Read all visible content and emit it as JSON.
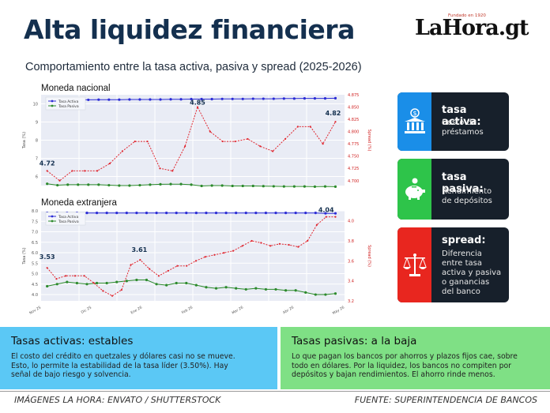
{
  "header": {
    "title": "Alta liquidez financiera",
    "subtitle": "Comportamiento entre la tasa activa, pasiva y spread (2025-2026)",
    "logo_text": "LaHora.gt",
    "logo_since": "Fundado en 1920"
  },
  "cards": [
    {
      "title": "tasa activa:",
      "desc": [
        "Costo de",
        "préstamos"
      ],
      "icon": "bank-dollar-icon",
      "color": "#1a8ee8"
    },
    {
      "title": "tasa pasiva:",
      "desc": [
        "Rendimiento",
        "de depósitos"
      ],
      "icon": "piggy-bank-icon",
      "color": "#2ec44a"
    },
    {
      "title": "spread:",
      "desc": [
        "Diferencia",
        "entre tasa",
        "activa y pasiva",
        "o ganancias",
        "del banco"
      ],
      "icon": "scale-icon",
      "color": "#e8261f"
    }
  ],
  "boxes": {
    "left": {
      "title": "Tasas activas: estables",
      "lines": [
        "El costo del crédito en quetzales y dólares casi no se mueve.",
        "Esto, lo permite la estabilidad de la tasa líder (3.50%). Hay",
        "señal de bajo riesgo y solvencia."
      ],
      "color": "#5bc8f5"
    },
    "right": {
      "title": "Tasas pasivas: a la baja",
      "lines": [
        "Lo que pagan los bancos por ahorros y plazos fijos cae, sobre",
        "todo en dólares. Por la liquidez, los bancos no compiten por",
        "depósitos y bajan rendimientos. El ahorro rinde menos."
      ],
      "color": "#7fe085"
    }
  },
  "footer": {
    "left": "IMÁGENES LA HORA: ENVATO / SHUTTERSTOCK",
    "right": "FUENTE: SUPERINTENDENCIA DE BANCOS"
  },
  "chart_data": [
    {
      "type": "line",
      "title": "Moneda nacional",
      "ylabel": "Tasa (%)",
      "y2label": "Spread (%)",
      "ylim": [
        5.5,
        10.5
      ],
      "y2lim": [
        4.69,
        4.875
      ],
      "yticks": [
        "6",
        "7",
        "8",
        "9",
        "10"
      ],
      "y2ticks": [
        "4.700",
        "4.725",
        "4.750",
        "4.775",
        "4.800",
        "4.825",
        "4.850",
        "4.875"
      ],
      "legend": [
        "Tasa Activa",
        "Tasa Pasiva"
      ],
      "legend_position": "top-left",
      "grid": true,
      "series": [
        {
          "name": "Tasa Activa",
          "axis": "left",
          "color": "#2b2bd6",
          "values": [
            10.2,
            10.2,
            10.2,
            10.22,
            10.22,
            10.23,
            10.23,
            10.23,
            10.24,
            10.24,
            10.24,
            10.24,
            10.25,
            10.25,
            10.26,
            10.26,
            10.26,
            10.27,
            10.27,
            10.27,
            10.28,
            10.28,
            10.28,
            10.29,
            10.29,
            10.3,
            10.3,
            10.3,
            10.31
          ]
        },
        {
          "name": "Tasa Pasiva",
          "axis": "left",
          "color": "#2c8a2c",
          "values": [
            5.6,
            5.52,
            5.55,
            5.55,
            5.55,
            5.55,
            5.52,
            5.5,
            5.5,
            5.52,
            5.55,
            5.57,
            5.58,
            5.58,
            5.55,
            5.48,
            5.5,
            5.5,
            5.48,
            5.48,
            5.48,
            5.47,
            5.46,
            5.45,
            5.45,
            5.45,
            5.44,
            5.45,
            5.44
          ]
        },
        {
          "name": "Spread",
          "axis": "right",
          "color": "#e0262f",
          "values": [
            4.72,
            4.7,
            4.72,
            4.72,
            4.72,
            4.735,
            4.76,
            4.78,
            4.78,
            4.725,
            4.72,
            4.77,
            4.85,
            4.8,
            4.78,
            4.78,
            4.785,
            4.77,
            4.76,
            4.785,
            4.81,
            4.81,
            4.775,
            4.82
          ]
        }
      ],
      "annotations": [
        "4.72",
        "4.85",
        "4.82"
      ]
    },
    {
      "type": "line",
      "title": "Moneda extranjera",
      "ylabel": "Tasa (%)",
      "y2label": "Spread (%)",
      "x_tick_labels": [
        "Nov 25",
        "Dic 25",
        "Ene 26",
        "Feb 26",
        "Mar 26",
        "Abr 26",
        "May 26"
      ],
      "ylim": [
        3.7,
        8.0
      ],
      "y2lim": [
        3.2,
        4.1
      ],
      "yticks": [
        "4.0",
        "4.5",
        "5.0",
        "5.5",
        "6.0",
        "6.5",
        "7.0",
        "7.5",
        "8.0"
      ],
      "y2ticks": [
        "3.2",
        "3.4",
        "3.6",
        "3.8",
        "4.0"
      ],
      "legend": [
        "Tasa Activa",
        "Tasa Pasiva"
      ],
      "legend_position": "top-left",
      "grid": true,
      "series": [
        {
          "name": "Tasa Activa",
          "axis": "left",
          "color": "#2b2bd6",
          "values": [
            7.9,
            7.9,
            7.9,
            7.9,
            7.9,
            7.9,
            7.9,
            7.9,
            7.9,
            7.9,
            7.9,
            7.9,
            7.9,
            7.9,
            7.9,
            7.9,
            7.9,
            7.9,
            7.9,
            7.9,
            7.9,
            7.9,
            7.9,
            7.9,
            7.9,
            7.9,
            7.9,
            7.9,
            7.88,
            7.88
          ]
        },
        {
          "name": "Tasa Pasiva",
          "axis": "left",
          "color": "#2c8a2c",
          "values": [
            4.4,
            4.5,
            4.6,
            4.55,
            4.5,
            4.55,
            4.55,
            4.6,
            4.65,
            4.7,
            4.7,
            4.5,
            4.45,
            4.55,
            4.55,
            4.45,
            4.35,
            4.3,
            4.35,
            4.3,
            4.25,
            4.3,
            4.25,
            4.25,
            4.2,
            4.2,
            4.1,
            4.0,
            4.0,
            4.05
          ]
        },
        {
          "name": "Spread",
          "axis": "right",
          "color": "#e0262f",
          "values": [
            3.53,
            3.42,
            3.45,
            3.45,
            3.45,
            3.38,
            3.3,
            3.25,
            3.31,
            3.56,
            3.61,
            3.52,
            3.45,
            3.5,
            3.55,
            3.55,
            3.6,
            3.64,
            3.66,
            3.68,
            3.7,
            3.75,
            3.8,
            3.78,
            3.75,
            3.77,
            3.76,
            3.74,
            3.8,
            3.96,
            4.04,
            4.04
          ]
        }
      ],
      "annotations": [
        "3.53",
        "3.61",
        "4.04"
      ]
    }
  ]
}
